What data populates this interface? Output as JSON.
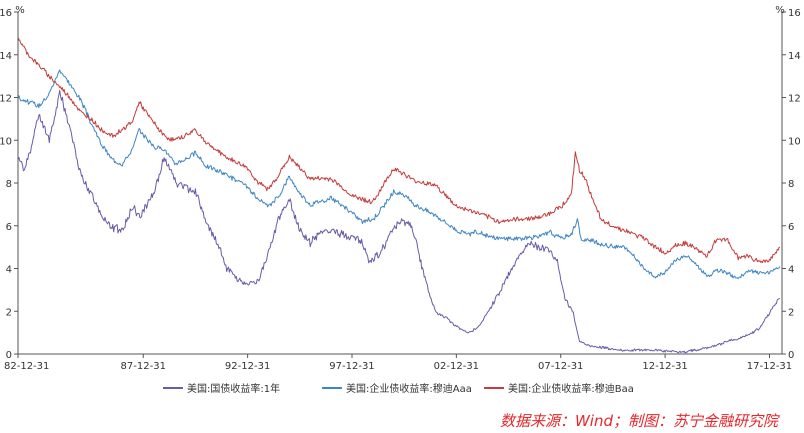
{
  "source_note": "数据来源：Wind；制图：苏宁金融研究院",
  "colors": {
    "treasury_1y": "#6b5ba8",
    "aaa": "#3f86c4",
    "baa": "#c43c3c",
    "axis": "#555555"
  },
  "chart_data": {
    "type": "line",
    "y_unit_left": "%",
    "y_unit_right": "%",
    "ylim": [
      0,
      16
    ],
    "y_ticks": [
      0,
      2,
      4,
      6,
      8,
      10,
      12,
      14,
      16
    ],
    "xlim": [
      1982.0,
      2018.6
    ],
    "x_ticks": [
      {
        "label": "82-12-31",
        "x": 1982.0
      },
      {
        "label": "87-12-31",
        "x": 1988.0
      },
      {
        "label": "92-12-31",
        "x": 1993.0
      },
      {
        "label": "97-12-31",
        "x": 1998.0
      },
      {
        "label": "02-12-31",
        "x": 2003.0
      },
      {
        "label": "07-12-31",
        "x": 2008.0
      },
      {
        "label": "12-12-31",
        "x": 2013.0
      },
      {
        "label": "17-12-31",
        "x": 2018.0
      }
    ],
    "grid": false,
    "legend_position": "bottom",
    "series": [
      {
        "name": "美国:国债收益率:1年",
        "color": "#6b5ba8",
        "x": [
          1982.0,
          1982.3,
          1982.6,
          1983.0,
          1983.5,
          1984.0,
          1984.5,
          1985.0,
          1985.5,
          1986.0,
          1986.5,
          1987.0,
          1987.5,
          1987.8,
          1988.2,
          1988.6,
          1989.0,
          1989.3,
          1989.6,
          1990.0,
          1990.5,
          1991.0,
          1991.5,
          1992.0,
          1992.5,
          1993.0,
          1993.5,
          1994.0,
          1994.5,
          1995.0,
          1995.5,
          1996.0,
          1996.5,
          1997.0,
          1997.5,
          1998.0,
          1998.5,
          1998.8,
          1999.2,
          1999.6,
          2000.0,
          2000.5,
          2000.9,
          2001.3,
          2001.7,
          2002.0,
          2002.5,
          2003.0,
          2003.5,
          2004.0,
          2004.5,
          2005.0,
          2005.5,
          2006.0,
          2006.5,
          2007.0,
          2007.4,
          2007.8,
          2008.2,
          2008.6,
          2008.9,
          2009.3,
          2010.0,
          2011.0,
          2012.0,
          2013.0,
          2014.0,
          2015.0,
          2015.5,
          2016.0,
          2016.5,
          2017.0,
          2017.5,
          2018.0,
          2018.5
        ],
        "y": [
          9.2,
          8.6,
          9.6,
          11.2,
          10.0,
          12.3,
          10.5,
          8.4,
          7.5,
          6.5,
          5.9,
          5.8,
          6.9,
          6.4,
          7.0,
          7.8,
          9.2,
          8.6,
          8.0,
          7.8,
          7.6,
          6.2,
          5.3,
          4.0,
          3.5,
          3.3,
          3.4,
          4.7,
          6.4,
          7.2,
          5.8,
          5.2,
          5.7,
          5.8,
          5.6,
          5.5,
          5.2,
          4.3,
          4.6,
          5.1,
          5.9,
          6.2,
          5.9,
          4.3,
          2.8,
          2.0,
          1.7,
          1.3,
          1.0,
          1.2,
          1.9,
          2.8,
          3.7,
          4.5,
          5.2,
          5.0,
          4.9,
          4.5,
          2.6,
          1.9,
          0.6,
          0.4,
          0.3,
          0.15,
          0.2,
          0.15,
          0.1,
          0.3,
          0.4,
          0.6,
          0.7,
          0.9,
          1.2,
          1.9,
          2.6
        ]
      },
      {
        "name": "美国:企业债收益率:穆迪Aaa",
        "color": "#3f86c4",
        "x": [
          1982.0,
          1982.5,
          1983.0,
          1983.5,
          1984.0,
          1984.5,
          1985.0,
          1985.5,
          1986.0,
          1986.5,
          1987.0,
          1987.5,
          1987.8,
          1988.5,
          1989.0,
          1989.5,
          1990.0,
          1990.5,
          1991.0,
          1992.0,
          1993.0,
          1993.5,
          1994.0,
          1994.5,
          1995.0,
          1995.5,
          1996.0,
          1997.0,
          1998.0,
          1998.5,
          1999.0,
          1999.5,
          2000.0,
          2000.5,
          2001.0,
          2002.0,
          2003.0,
          2003.5,
          2004.0,
          2005.0,
          2006.0,
          2007.0,
          2007.5,
          2008.0,
          2008.5,
          2008.8,
          2009.0,
          2009.5,
          2010.0,
          2011.0,
          2011.5,
          2012.0,
          2012.5,
          2013.0,
          2013.5,
          2014.0,
          2014.5,
          2015.0,
          2015.5,
          2016.0,
          2016.5,
          2017.0,
          2017.5,
          2018.0,
          2018.5
        ],
        "y": [
          12.0,
          11.8,
          11.6,
          12.2,
          13.3,
          12.6,
          11.9,
          10.8,
          9.8,
          9.1,
          8.9,
          9.6,
          10.5,
          9.7,
          9.6,
          8.9,
          9.1,
          9.4,
          8.8,
          8.4,
          7.8,
          7.2,
          6.9,
          7.4,
          8.3,
          7.5,
          7.0,
          7.3,
          6.6,
          6.2,
          6.3,
          6.9,
          7.6,
          7.4,
          7.0,
          6.5,
          5.8,
          5.6,
          5.7,
          5.4,
          5.4,
          5.5,
          5.7,
          5.4,
          5.6,
          6.3,
          5.3,
          5.3,
          5.1,
          5.0,
          4.6,
          4.0,
          3.6,
          3.8,
          4.4,
          4.6,
          4.2,
          3.6,
          3.9,
          3.8,
          3.5,
          3.9,
          3.8,
          3.8,
          4.1
        ]
      },
      {
        "name": "美国:企业债收益率:穆迪Baa",
        "color": "#c43c3c",
        "x": [
          1982.0,
          1982.5,
          1983.0,
          1983.5,
          1984.0,
          1984.5,
          1985.0,
          1985.5,
          1986.0,
          1986.5,
          1987.0,
          1987.5,
          1987.8,
          1988.2,
          1988.6,
          1989.0,
          1989.5,
          1990.0,
          1990.5,
          1991.0,
          1992.0,
          1993.0,
          1993.5,
          1994.0,
          1994.5,
          1995.0,
          1996.0,
          1997.0,
          1998.0,
          1999.0,
          1999.5,
          2000.0,
          2001.0,
          2002.0,
          2003.0,
          2004.0,
          2005.0,
          2006.0,
          2007.0,
          2007.5,
          2008.0,
          2008.5,
          2008.7,
          2008.9,
          2009.2,
          2009.6,
          2010.0,
          2011.0,
          2012.0,
          2013.0,
          2013.5,
          2014.0,
          2015.0,
          2015.5,
          2016.0,
          2016.5,
          2017.0,
          2017.5,
          2018.0,
          2018.5
        ],
        "y": [
          14.8,
          14.0,
          13.5,
          13.0,
          12.5,
          12.0,
          11.3,
          11.0,
          10.5,
          10.2,
          10.5,
          10.9,
          11.8,
          11.2,
          10.7,
          10.2,
          10.0,
          10.2,
          10.5,
          9.9,
          9.2,
          8.7,
          8.0,
          7.7,
          8.4,
          9.2,
          8.2,
          8.2,
          7.4,
          7.1,
          7.9,
          8.7,
          8.1,
          7.9,
          6.9,
          6.6,
          6.2,
          6.3,
          6.4,
          6.6,
          6.9,
          7.4,
          9.4,
          8.6,
          8.2,
          7.0,
          6.2,
          5.8,
          5.4,
          4.7,
          5.1,
          5.2,
          4.6,
          5.4,
          5.3,
          4.5,
          4.6,
          4.3,
          4.4,
          5.0
        ]
      }
    ]
  }
}
